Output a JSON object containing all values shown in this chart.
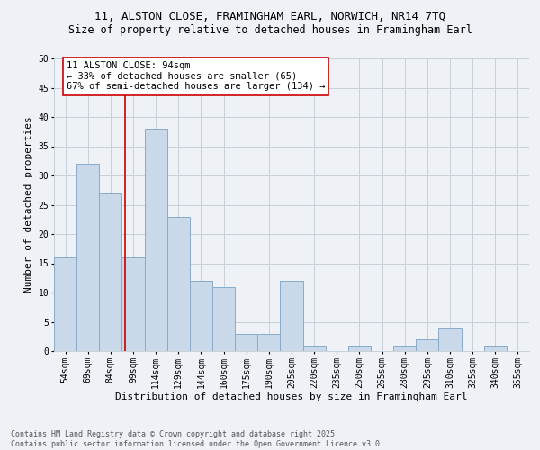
{
  "title_line1": "11, ALSTON CLOSE, FRAMINGHAM EARL, NORWICH, NR14 7TQ",
  "title_line2": "Size of property relative to detached houses in Framingham Earl",
  "xlabel": "Distribution of detached houses by size in Framingham Earl",
  "ylabel": "Number of detached properties",
  "categories": [
    "54sqm",
    "69sqm",
    "84sqm",
    "99sqm",
    "114sqm",
    "129sqm",
    "144sqm",
    "160sqm",
    "175sqm",
    "190sqm",
    "205sqm",
    "220sqm",
    "235sqm",
    "250sqm",
    "265sqm",
    "280sqm",
    "295sqm",
    "310sqm",
    "325sqm",
    "340sqm",
    "355sqm"
  ],
  "values": [
    16,
    32,
    27,
    16,
    38,
    23,
    12,
    11,
    3,
    3,
    12,
    1,
    0,
    1,
    0,
    1,
    2,
    4,
    0,
    1,
    0
  ],
  "bar_color": "#c9d9ea",
  "bar_edge_color": "#88aac8",
  "bar_width": 1.0,
  "ylim": [
    0,
    50
  ],
  "yticks": [
    0,
    5,
    10,
    15,
    20,
    25,
    30,
    35,
    40,
    45,
    50
  ],
  "grid_color": "#c8d0d8",
  "bg_color": "#eef2f7",
  "annotation_line1": "11 ALSTON CLOSE: 94sqm",
  "annotation_line2": "← 33% of detached houses are smaller (65)",
  "annotation_line3": "67% of semi-detached houses are larger (134) →",
  "annotation_box_color": "#ffffff",
  "annotation_box_edge": "#cc0000",
  "vline_color": "#cc0000",
  "vline_pos": 2.65,
  "footer_line1": "Contains HM Land Registry data © Crown copyright and database right 2025.",
  "footer_line2": "Contains public sector information licensed under the Open Government Licence v3.0.",
  "title_fontsize": 9,
  "subtitle_fontsize": 8.5,
  "axis_label_fontsize": 8,
  "tick_fontsize": 7,
  "annotation_fontsize": 7.5,
  "footer_fontsize": 6
}
